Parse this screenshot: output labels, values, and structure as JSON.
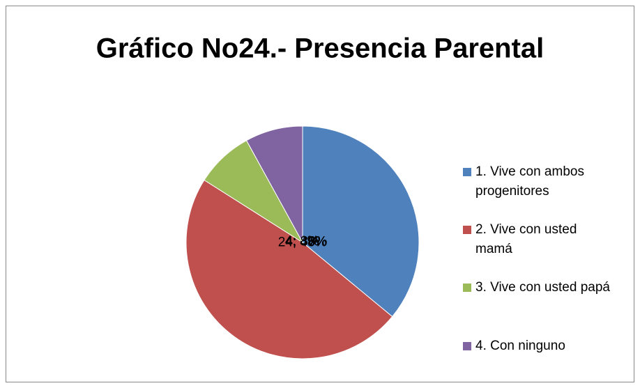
{
  "chart_data": {
    "type": "pie",
    "title": "Gráfico No24.- Presencia Parental",
    "categories": [
      "1. Vive con ambos progenitores",
      "2. Vive con usted mamá",
      "3. Vive con usted papá",
      "4. Con ninguno"
    ],
    "values": [
      18,
      24,
      4,
      4
    ],
    "value_labels": [
      "18; 36%",
      "24; 48%",
      "4; 8%",
      "4; 8%"
    ],
    "colors": [
      "#4f81bd",
      "#c0504d",
      "#9bbb59",
      "#8064a2"
    ],
    "legend": "right"
  }
}
